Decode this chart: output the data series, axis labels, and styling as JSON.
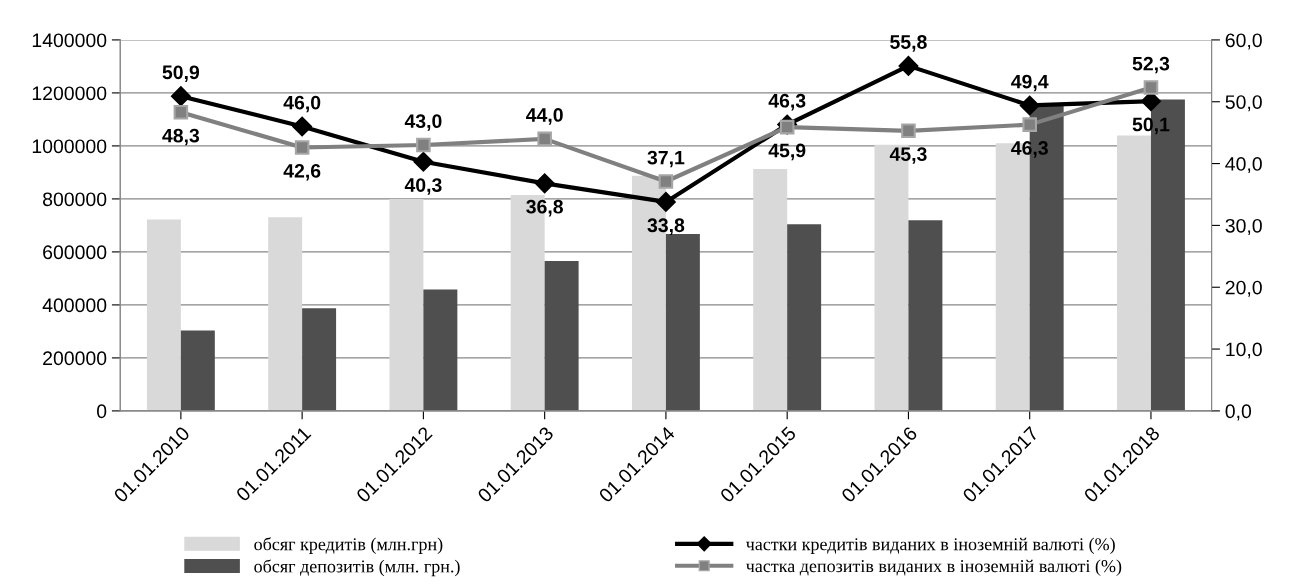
{
  "chart_data": {
    "type": "bar",
    "categories": [
      "01.01.2010",
      "01.01.2011",
      "01.01.2012",
      "01.01.2013",
      "01.01.2014",
      "01.01.2015",
      "01.01.2016",
      "01.01.2017",
      "01.01.2018"
    ],
    "series": [
      {
        "name": "обсяг кредитів (млн.грн)",
        "color": "#d9d9d9",
        "values": [
          722000,
          731000,
          800000,
          815000,
          887000,
          913000,
          1004000,
          1010000,
          1039000
        ]
      },
      {
        "name": "обсяг депозитів (млн. грн.)",
        "color": "#4f4f4f",
        "values": [
          303000,
          387000,
          458000,
          566000,
          668000,
          704000,
          719000,
          1155000,
          1175000
        ]
      },
      {
        "name": "частки кредитів виданих в іноземній валюті (%)",
        "color": "#000000",
        "type": "line",
        "axis": "y2",
        "marker": "diamond",
        "values": [
          50.9,
          46.0,
          40.3,
          36.8,
          33.8,
          46.3,
          55.8,
          49.4,
          50.1
        ],
        "value_labels": [
          "50,9",
          "46,0",
          "40,3",
          "36,8",
          "33,8",
          "46,3",
          "55,8",
          "49,4",
          "50,1"
        ]
      },
      {
        "name": "частка депозитів виданих в іноземній валюті (%)",
        "color": "#808080",
        "type": "line",
        "axis": "y2",
        "marker": "square",
        "values": [
          48.3,
          42.6,
          43.0,
          44.0,
          37.1,
          45.9,
          45.3,
          46.3,
          52.3
        ],
        "value_labels": [
          "48,3",
          "42,6",
          "43,0",
          "44,0",
          "37,1",
          "45,9",
          "45,3",
          "46,3",
          "52,3"
        ]
      }
    ],
    "ylim": [
      0,
      1400000
    ],
    "yticks": [
      0,
      200000,
      400000,
      600000,
      800000,
      1000000,
      1200000,
      1400000
    ],
    "y2lim": [
      0,
      60
    ],
    "y2ticks": [
      {
        "value": 0,
        "label": "0,0"
      },
      {
        "value": 10,
        "label": "10,0"
      },
      {
        "value": 20,
        "label": "20,0"
      },
      {
        "value": 30,
        "label": "30,0"
      },
      {
        "value": 40,
        "label": "40,0"
      },
      {
        "value": 50,
        "label": "50,0"
      },
      {
        "value": 60,
        "label": "60,0"
      }
    ],
    "grid": "y",
    "legend": "bottom"
  }
}
